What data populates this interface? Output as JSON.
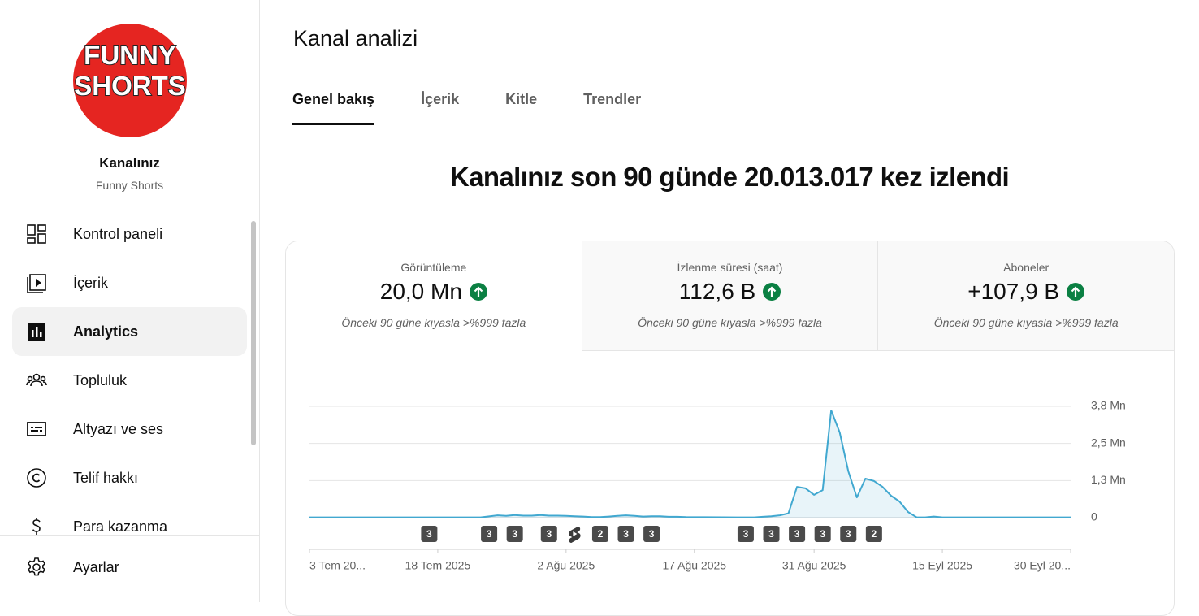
{
  "sidebar": {
    "logo_lines": [
      "FUNNY",
      "SHORTS"
    ],
    "channel_title": "Kanalınız",
    "channel_name": "Funny Shorts",
    "nav": [
      "Kontrol paneli",
      "İçerik",
      "Analytics",
      "Topluluk",
      "Altyazı ve ses",
      "Telif hakkı",
      "Para kazanma"
    ],
    "settings": "Ayarlar"
  },
  "header": {
    "title": "Kanal analizi",
    "tabs": [
      "Genel bakış",
      "İçerik",
      "Kitle",
      "Trendler"
    ]
  },
  "headline": "Kanalınız son 90 günde 20.013.017 kez izlendi",
  "metrics": [
    {
      "label": "Görüntüleme",
      "value": "20,0 Mn",
      "comparison": "Önceki 90 güne kıyasla >%999 fazla"
    },
    {
      "label": "İzlenme süresi (saat)",
      "value": "112,6 B",
      "comparison": "Önceki 90 güne kıyasla >%999 fazla"
    },
    {
      "label": "Aboneler",
      "value": "+107,9 B",
      "comparison": "Önceki 90 güne kıyasla >%999 fazla"
    }
  ],
  "chart_data": {
    "type": "line",
    "color": "#41a8d0",
    "grid": true,
    "x": [
      0,
      20,
      22,
      23,
      24,
      25,
      26,
      27,
      28,
      29,
      30,
      31,
      32,
      33,
      34,
      35,
      36,
      37,
      38,
      39,
      40,
      41,
      42,
      43,
      44,
      50,
      52,
      53,
      54,
      55,
      56,
      57,
      58,
      59,
      60,
      61,
      62,
      63,
      64,
      65,
      66,
      67,
      68,
      69,
      70,
      71,
      72,
      73,
      74,
      89
    ],
    "values": [
      10000,
      10000,
      80000,
      60000,
      90000,
      70000,
      70000,
      90000,
      70000,
      70000,
      60000,
      50000,
      40000,
      20000,
      20000,
      40000,
      60000,
      80000,
      60000,
      40000,
      50000,
      50000,
      30000,
      30000,
      20000,
      10000,
      10000,
      30000,
      50000,
      80000,
      150000,
      1050000,
      1000000,
      780000,
      940000,
      3660000,
      2910000,
      1580000,
      690000,
      1330000,
      1250000,
      1050000,
      750000,
      550000,
      190000,
      10000,
      10000,
      40000,
      10000,
      10000
    ],
    "xlim": [
      0,
      89
    ],
    "xticks": [
      {
        "value": 0,
        "label": "3 Tem 20..."
      },
      {
        "value": 15,
        "label": "18 Tem 2025"
      },
      {
        "value": 30,
        "label": "2 Ağu 2025"
      },
      {
        "value": 45,
        "label": "17 Ağu 2025"
      },
      {
        "value": 59,
        "label": "31 Ağu 2025"
      },
      {
        "value": 74,
        "label": "15 Eyl 2025"
      },
      {
        "value": 89,
        "label": "30 Eyl 20..."
      }
    ],
    "ylim": [
      0,
      3800000
    ],
    "yticks": [
      {
        "value": 0,
        "label": "0"
      },
      {
        "value": 1266667,
        "label": "1,3 Mn"
      },
      {
        "value": 2533333,
        "label": "2,5 Mn"
      },
      {
        "value": 3800000,
        "label": "3,8 Mn"
      }
    ],
    "video_markers": [
      {
        "x": 14,
        "label": "3"
      },
      {
        "x": 21,
        "label": "3"
      },
      {
        "x": 24,
        "label": "3"
      },
      {
        "x": 28,
        "label": "3"
      },
      {
        "x": 31
      },
      {
        "x": 34,
        "label": "2"
      },
      {
        "x": 37,
        "label": "3"
      },
      {
        "x": 40,
        "label": "3"
      },
      {
        "x": 51,
        "label": "3"
      },
      {
        "x": 54,
        "label": "3"
      },
      {
        "x": 57,
        "label": "3"
      },
      {
        "x": 60,
        "label": "3"
      },
      {
        "x": 63,
        "label": "3"
      },
      {
        "x": 66,
        "label": "2"
      }
    ]
  }
}
